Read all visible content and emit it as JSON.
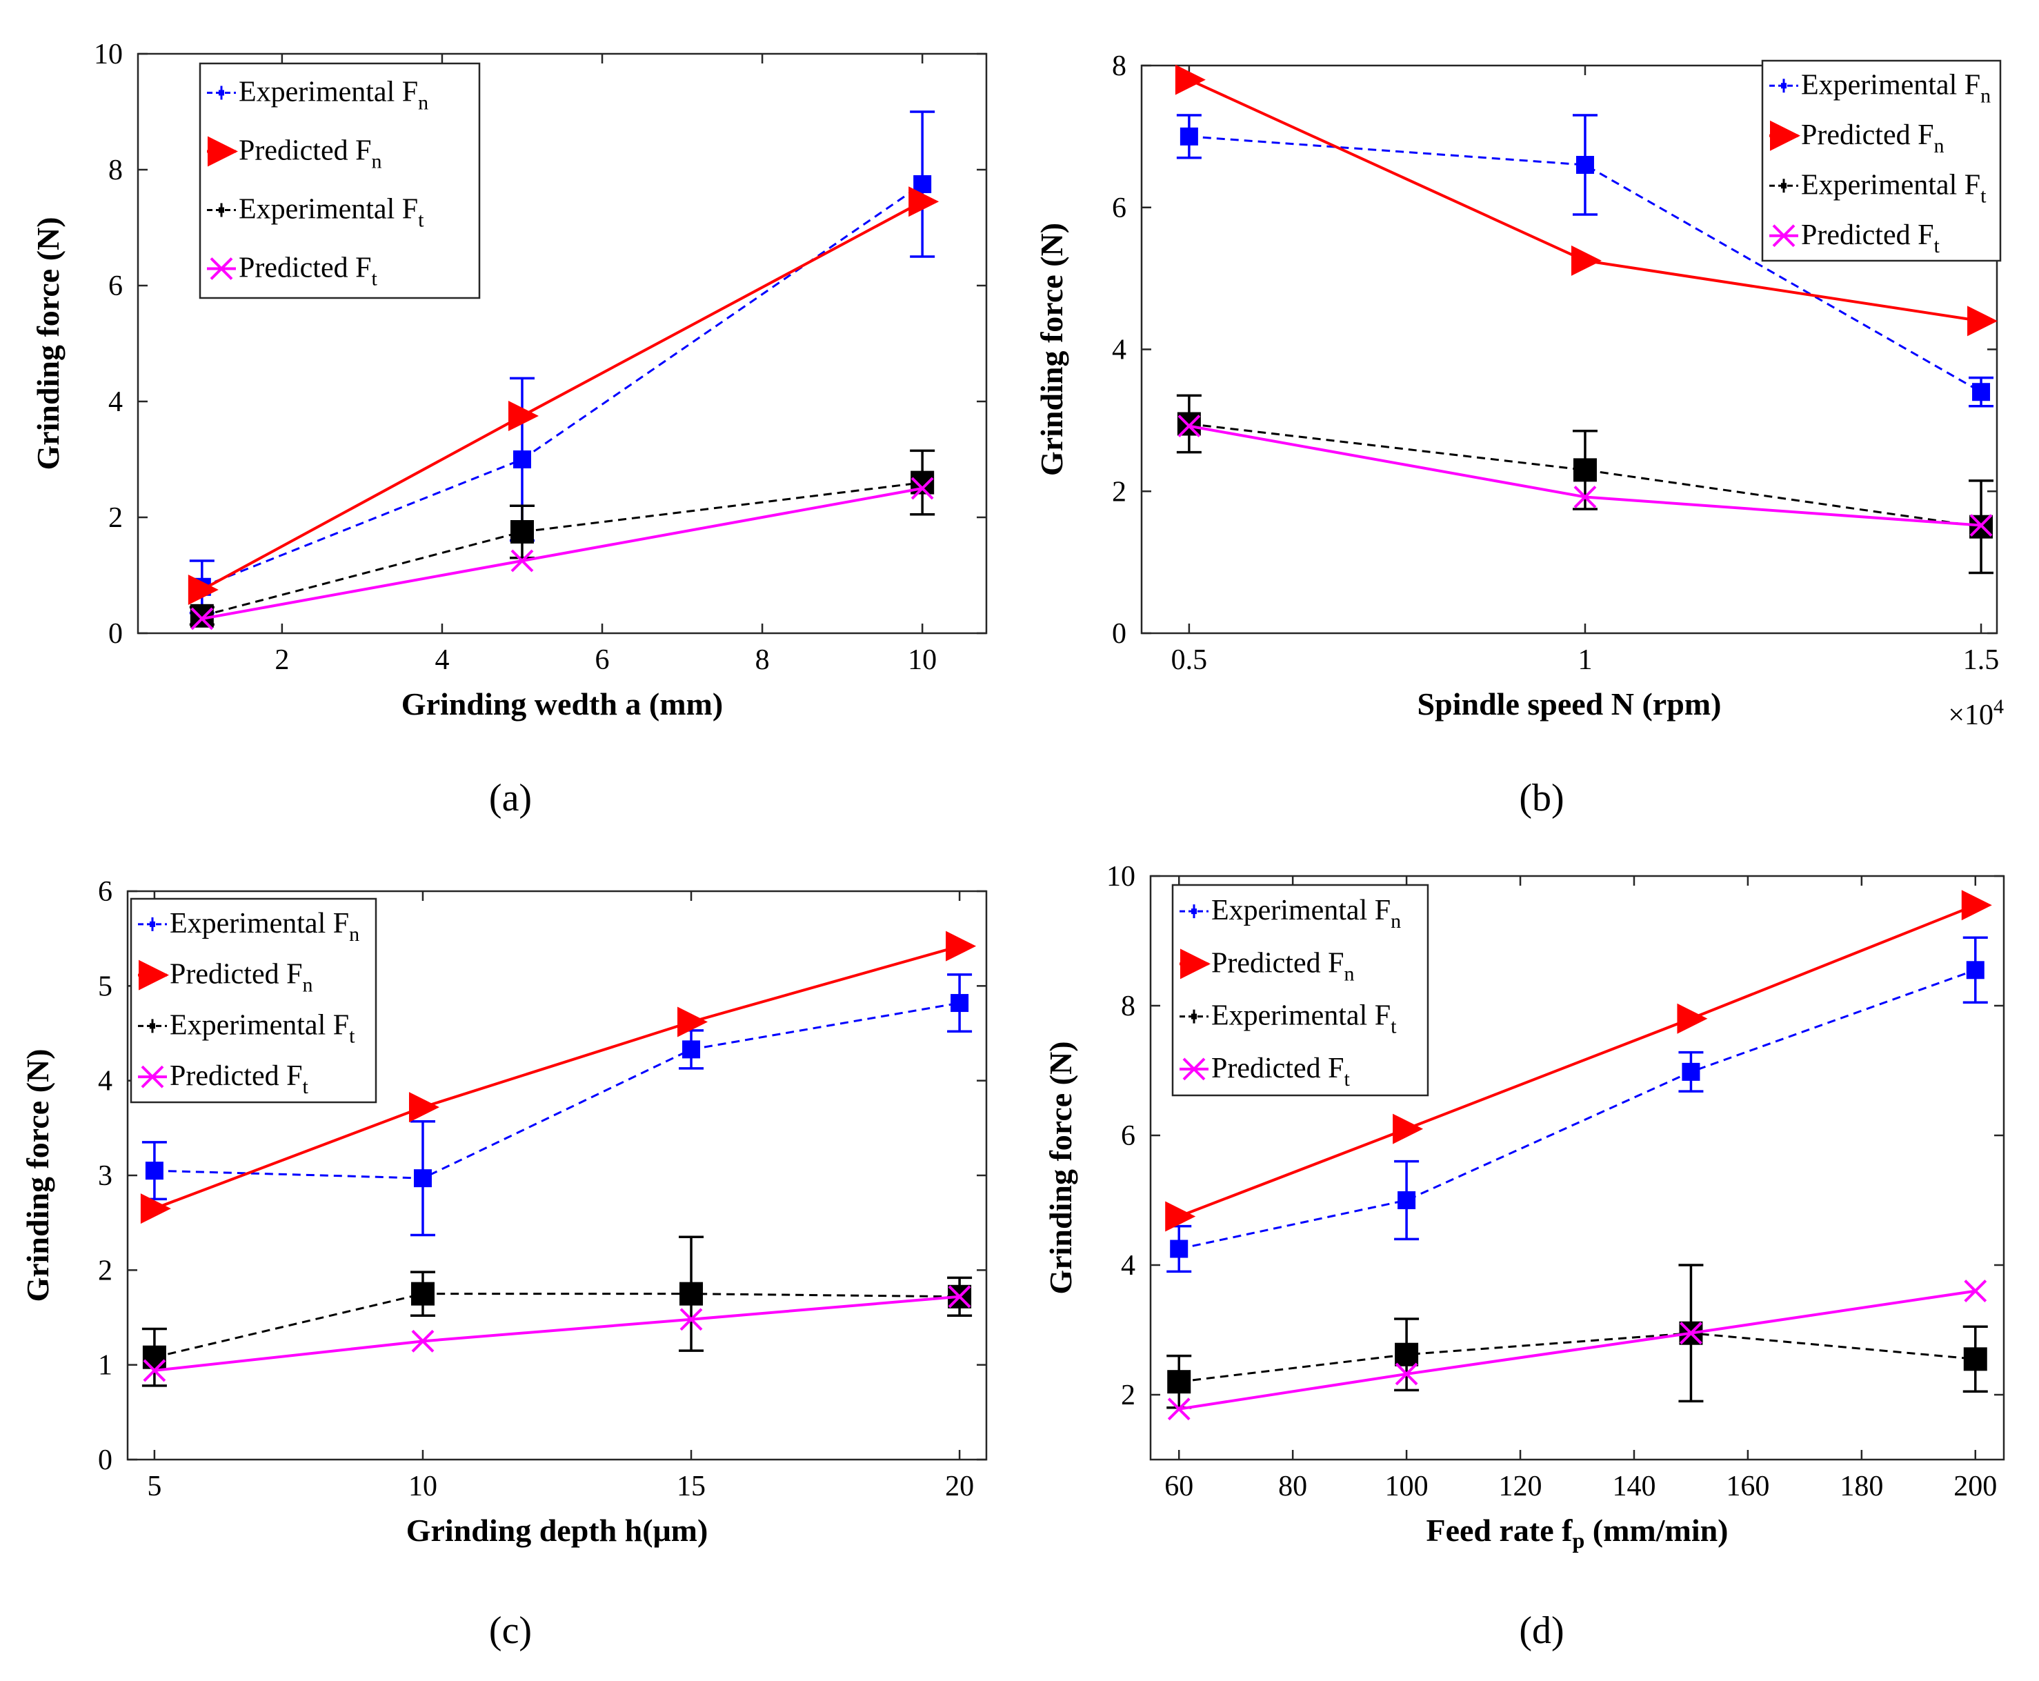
{
  "colors": {
    "exp_fn": "#0000ff",
    "pred_fn": "#ff0000",
    "exp_ft": "#000000",
    "pred_ft": "#ff00ff"
  },
  "legend_labels": {
    "exp_fn": "Experimental F",
    "exp_fn_sub": "n",
    "pred_fn": "Predicted F",
    "pred_fn_sub": "n",
    "exp_ft": "Experimental F",
    "exp_ft_sub": "t",
    "pred_ft": "Predicted F",
    "pred_ft_sub": "t"
  },
  "chart_data": [
    {
      "id": "a",
      "type": "line",
      "caption": "(a)",
      "xlabel": "Grinding wedth a  (mm)",
      "ylabel": "Grinding force (N)",
      "xlim": [
        0.2,
        10.8
      ],
      "ylim": [
        0,
        10
      ],
      "xticks": [
        2,
        4,
        6,
        8,
        10
      ],
      "xtick_labels": [
        "2",
        "4",
        "6",
        "8",
        "10"
      ],
      "yticks": [
        0,
        2,
        4,
        6,
        8,
        10
      ],
      "ytick_labels": [
        "0",
        "2",
        "4",
        "6",
        "8",
        "10"
      ],
      "legend_position": "top-left",
      "series": [
        {
          "key": "exp_fn",
          "x": [
            1,
            5,
            10
          ],
          "y": [
            0.8,
            3.0,
            7.75
          ],
          "err": [
            0.45,
            1.4,
            1.25
          ]
        },
        {
          "key": "pred_fn",
          "x": [
            1,
            5,
            10
          ],
          "y": [
            0.75,
            3.75,
            7.45
          ]
        },
        {
          "key": "exp_ft",
          "x": [
            1,
            5,
            10
          ],
          "y": [
            0.3,
            1.75,
            2.6
          ],
          "err": [
            0.15,
            0.45,
            0.55
          ]
        },
        {
          "key": "pred_ft",
          "x": [
            1,
            5,
            10
          ],
          "y": [
            0.25,
            1.25,
            2.5
          ]
        }
      ]
    },
    {
      "id": "b",
      "type": "line",
      "caption": "(b)",
      "xlabel": "Spindle speed N (rpm)",
      "ylabel": "Grinding force (N)",
      "xlim": [
        0.44,
        1.52
      ],
      "ylim": [
        0,
        8
      ],
      "xticks": [
        0.5,
        1,
        1.5
      ],
      "xtick_labels": [
        "0.5",
        "1",
        "1.5"
      ],
      "yticks": [
        0,
        2,
        4,
        6,
        8
      ],
      "ytick_labels": [
        "0",
        "2",
        "4",
        "6",
        "8"
      ],
      "x_multiplier_base": "×10",
      "x_multiplier_exp": "4",
      "legend_position": "top-right",
      "series": [
        {
          "key": "exp_fn",
          "x": [
            0.5,
            1,
            1.5
          ],
          "y": [
            7.0,
            6.6,
            3.4
          ],
          "err": [
            0.3,
            0.7,
            0.2
          ]
        },
        {
          "key": "pred_fn",
          "x": [
            0.5,
            1,
            1.5
          ],
          "y": [
            7.8,
            5.25,
            4.4
          ]
        },
        {
          "key": "exp_ft",
          "x": [
            0.5,
            1,
            1.5
          ],
          "y": [
            2.95,
            2.3,
            1.5
          ],
          "err": [
            0.4,
            0.55,
            0.65
          ]
        },
        {
          "key": "pred_ft",
          "x": [
            0.5,
            1,
            1.5
          ],
          "y": [
            2.92,
            1.92,
            1.52
          ]
        }
      ]
    },
    {
      "id": "c",
      "type": "line",
      "caption": "(c)",
      "xlabel": "Grinding  depth h(μm)",
      "ylabel": "Grinding force (N)",
      "xlim": [
        4.5,
        20.5
      ],
      "ylim": [
        0,
        6
      ],
      "xticks": [
        5,
        10,
        15,
        20
      ],
      "xtick_labels": [
        "5",
        "10",
        "15",
        "20"
      ],
      "yticks": [
        0,
        1,
        2,
        3,
        4,
        5,
        6
      ],
      "ytick_labels": [
        "0",
        "1",
        "2",
        "3",
        "4",
        "5",
        "6"
      ],
      "legend_position": "top-left",
      "series": [
        {
          "key": "exp_fn",
          "x": [
            5,
            10,
            15,
            20
          ],
          "y": [
            3.05,
            2.97,
            4.33,
            4.82
          ],
          "err": [
            0.3,
            0.6,
            0.2,
            0.3
          ]
        },
        {
          "key": "pred_fn",
          "x": [
            5,
            10,
            15,
            20
          ],
          "y": [
            2.65,
            3.72,
            4.62,
            5.42
          ]
        },
        {
          "key": "exp_ft",
          "x": [
            5,
            10,
            15,
            20
          ],
          "y": [
            1.08,
            1.75,
            1.75,
            1.72
          ],
          "err": [
            0.3,
            0.23,
            0.6,
            0.2
          ]
        },
        {
          "key": "pred_ft",
          "x": [
            5,
            10,
            15,
            20
          ],
          "y": [
            0.94,
            1.25,
            1.48,
            1.72
          ]
        }
      ]
    },
    {
      "id": "d",
      "type": "line",
      "caption": "(d)",
      "xlabel": "Feed rate f",
      "xlabel_sub": "p",
      "xlabel_suffix": " (mm/min)",
      "ylabel": "Grinding force (N)",
      "xlim": [
        55,
        205
      ],
      "ylim": [
        1,
        10
      ],
      "xticks": [
        60,
        80,
        100,
        120,
        140,
        160,
        180,
        200
      ],
      "xtick_labels": [
        "60",
        "80",
        "100",
        "120",
        "140",
        "160",
        "180",
        "200"
      ],
      "yticks": [
        2,
        4,
        6,
        8,
        10
      ],
      "ytick_labels": [
        "2",
        "4",
        "6",
        "8",
        "10"
      ],
      "legend_position": "top-left",
      "series": [
        {
          "key": "exp_fn",
          "x": [
            60,
            100,
            150,
            200
          ],
          "y": [
            4.25,
            5.0,
            6.98,
            8.55
          ],
          "err": [
            0.35,
            0.6,
            0.3,
            0.5
          ]
        },
        {
          "key": "pred_fn",
          "x": [
            60,
            100,
            150,
            200
          ],
          "y": [
            4.75,
            6.1,
            7.8,
            9.55
          ]
        },
        {
          "key": "exp_ft",
          "x": [
            60,
            100,
            150,
            200
          ],
          "y": [
            2.2,
            2.62,
            2.95,
            2.55
          ],
          "err": [
            0.4,
            0.55,
            1.05,
            0.5
          ]
        },
        {
          "key": "pred_ft",
          "x": [
            60,
            100,
            150,
            200
          ],
          "y": [
            1.78,
            2.32,
            2.95,
            3.6
          ]
        }
      ]
    }
  ]
}
